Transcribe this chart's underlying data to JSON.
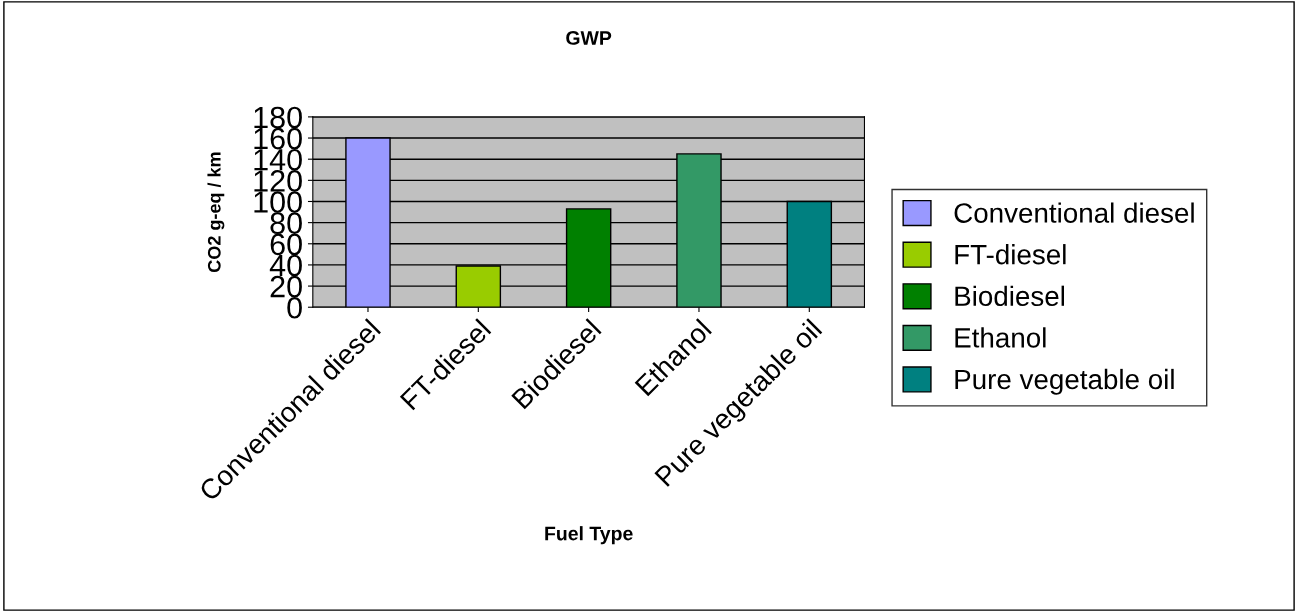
{
  "chart_data": {
    "type": "bar",
    "title": "GWP",
    "xlabel": "Fuel Type",
    "ylabel": "CO2 g-eq / km",
    "categories": [
      "Conventional diesel",
      "FT-diesel",
      "Biodiesel",
      "Ethanol",
      "Pure vegetable oil"
    ],
    "series": [
      {
        "name": "Conventional diesel",
        "color": "#9999ff",
        "values": [
          160,
          null,
          null,
          null,
          null
        ]
      },
      {
        "name": "FT-diesel",
        "color": "#99cc00",
        "values": [
          null,
          39,
          null,
          null,
          null
        ]
      },
      {
        "name": "Biodiesel",
        "color": "#008000",
        "values": [
          null,
          null,
          93,
          null,
          null
        ]
      },
      {
        "name": "Ethanol",
        "color": "#339966",
        "values": [
          null,
          null,
          null,
          145,
          null
        ]
      },
      {
        "name": "Pure vegetable oil",
        "color": "#008080",
        "values": [
          null,
          null,
          null,
          null,
          100
        ]
      }
    ],
    "ylim": [
      0,
      180
    ],
    "yticks": [
      0,
      20,
      40,
      60,
      80,
      100,
      120,
      140,
      160,
      180
    ],
    "grid": "y",
    "legend": "right"
  }
}
